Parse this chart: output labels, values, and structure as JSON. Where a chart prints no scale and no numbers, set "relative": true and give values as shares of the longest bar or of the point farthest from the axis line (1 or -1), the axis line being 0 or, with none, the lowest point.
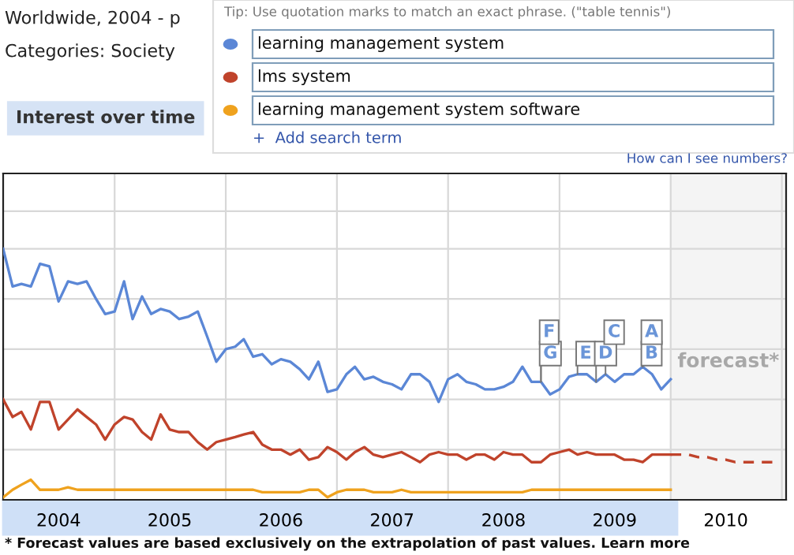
{
  "chart_data": {
    "type": "line",
    "title": "Interest over time",
    "relative": true,
    "legend": "top",
    "grid": true,
    "tick_labels": "x",
    "x": [
      "2004-01",
      "2004-02",
      "2004-03",
      "2004-04",
      "2004-05",
      "2004-06",
      "2004-07",
      "2004-08",
      "2004-09",
      "2004-10",
      "2004-11",
      "2004-12",
      "2005-01",
      "2005-02",
      "2005-03",
      "2005-04",
      "2005-05",
      "2005-06",
      "2005-07",
      "2005-08",
      "2005-09",
      "2005-10",
      "2005-11",
      "2005-12",
      "2006-01",
      "2006-02",
      "2006-03",
      "2006-04",
      "2006-05",
      "2006-06",
      "2006-07",
      "2006-08",
      "2006-09",
      "2006-10",
      "2006-11",
      "2006-12",
      "2007-01",
      "2007-02",
      "2007-03",
      "2007-04",
      "2007-05",
      "2007-06",
      "2007-07",
      "2007-08",
      "2007-09",
      "2007-10",
      "2007-11",
      "2007-12",
      "2008-01",
      "2008-02",
      "2008-03",
      "2008-04",
      "2008-05",
      "2008-06",
      "2008-07",
      "2008-08",
      "2008-09",
      "2008-10",
      "2008-11",
      "2008-12",
      "2009-01",
      "2009-02",
      "2009-03",
      "2009-04",
      "2009-05",
      "2009-06",
      "2009-07",
      "2009-08",
      "2009-09",
      "2009-10",
      "2009-11",
      "2009-12",
      "2010-01"
    ],
    "xlim": [
      "2004-01-01",
      "2011-01-15"
    ],
    "xticks": [
      {
        "value": "2005-01-01",
        "label": null
      },
      {
        "value": "2006-01-01",
        "label": null
      },
      {
        "value": "2007-01-01",
        "label": null
      },
      {
        "value": "2008-01-01",
        "label": null
      },
      {
        "value": "2009-01-01",
        "label": null
      },
      {
        "value": "2010-01-01",
        "label": null
      },
      {
        "value": "2011-01-01",
        "label": null
      },
      {
        "value": "2004-07-01",
        "label": "2004"
      },
      {
        "value": "2005-07-01",
        "label": "2005"
      },
      {
        "value": "2006-07-01",
        "label": "2006"
      },
      {
        "value": "2007-07-01",
        "label": "2007"
      },
      {
        "value": "2008-07-01",
        "label": "2008"
      },
      {
        "value": "2009-07-01",
        "label": "2009"
      },
      {
        "value": "2010-07-01",
        "label": "2010"
      }
    ],
    "series": [
      {
        "name": "learning management system",
        "color": "#5b87d6",
        "values": [
          1.0,
          0.85,
          0.86,
          0.85,
          0.94,
          0.93,
          0.79,
          0.87,
          0.86,
          0.87,
          0.8,
          0.74,
          0.75,
          0.87,
          0.72,
          0.81,
          0.74,
          0.76,
          0.75,
          0.72,
          0.73,
          0.75,
          0.65,
          0.55,
          0.6,
          0.61,
          0.64,
          0.57,
          0.58,
          0.54,
          0.56,
          0.55,
          0.52,
          0.48,
          0.55,
          0.43,
          0.44,
          0.5,
          0.53,
          0.48,
          0.49,
          0.47,
          0.46,
          0.44,
          0.5,
          0.5,
          0.47,
          0.39,
          0.48,
          0.5,
          0.47,
          0.46,
          0.44,
          0.44,
          0.45,
          0.47,
          0.53,
          0.47,
          0.47,
          0.42,
          0.44,
          0.49,
          0.5,
          0.5,
          0.47,
          0.5,
          0.47,
          0.5,
          0.5,
          0.53,
          0.5,
          0.44,
          0.48
        ]
      },
      {
        "name": "lms system",
        "color": "#c0432b",
        "values": [
          0.4,
          0.33,
          0.35,
          0.28,
          0.39,
          0.39,
          0.28,
          0.32,
          0.36,
          0.33,
          0.3,
          0.24,
          0.3,
          0.33,
          0.32,
          0.27,
          0.24,
          0.34,
          0.28,
          0.27,
          0.27,
          0.23,
          0.2,
          0.23,
          0.24,
          0.25,
          0.26,
          0.27,
          0.22,
          0.2,
          0.2,
          0.18,
          0.2,
          0.16,
          0.17,
          0.21,
          0.19,
          0.16,
          0.19,
          0.21,
          0.18,
          0.17,
          0.18,
          0.19,
          0.17,
          0.15,
          0.18,
          0.19,
          0.18,
          0.18,
          0.16,
          0.18,
          0.18,
          0.16,
          0.19,
          0.18,
          0.18,
          0.15,
          0.15,
          0.18,
          0.19,
          0.2,
          0.18,
          0.19,
          0.18,
          0.18,
          0.18,
          0.16,
          0.16,
          0.15,
          0.18,
          0.18,
          0.18
        ]
      },
      {
        "name": "learning management system software",
        "color": "#efa21e",
        "values": [
          0.01,
          0.04,
          0.06,
          0.08,
          0.04,
          0.04,
          0.04,
          0.05,
          0.04,
          0.04,
          0.04,
          0.04,
          0.04,
          0.04,
          0.04,
          0.04,
          0.04,
          0.04,
          0.04,
          0.04,
          0.04,
          0.04,
          0.04,
          0.04,
          0.04,
          0.04,
          0.04,
          0.04,
          0.03,
          0.03,
          0.03,
          0.03,
          0.03,
          0.04,
          0.04,
          0.01,
          0.03,
          0.04,
          0.04,
          0.04,
          0.03,
          0.03,
          0.03,
          0.04,
          0.03,
          0.03,
          0.03,
          0.03,
          0.03,
          0.03,
          0.03,
          0.03,
          0.03,
          0.03,
          0.03,
          0.03,
          0.03,
          0.04,
          0.04,
          0.04,
          0.04,
          0.04,
          0.04,
          0.04,
          0.04,
          0.04,
          0.04,
          0.04,
          0.04,
          0.04,
          0.04,
          0.04,
          0.04
        ]
      },
      {
        "color": "#c0432b",
        "line_style": "dashed",
        "x": [
          "2010-01",
          "2010-02",
          "2010-03",
          "2010-04",
          "2010-05",
          "2010-06",
          "2010-07",
          "2010-08",
          "2010-09",
          "2010-10",
          "2010-11",
          "2010-12"
        ],
        "values": [
          0.18,
          0.18,
          0.18,
          0.17,
          0.17,
          0.16,
          0.16,
          0.15,
          0.15,
          0.15,
          0.15,
          0.15
        ]
      }
    ],
    "bands": [
      {
        "axis": "x",
        "from": "2010-01-01",
        "to": "2011-01-15",
        "label": "forecast*",
        "color": "#f4f4f4"
      }
    ],
    "annotations": [
      "Worldwide, 2004 - p",
      "Categories: Society",
      "Tip: Use quotation marks to match an exact phrase. (\"table tennis\")",
      "+  Add search term",
      "How can I see numbers?",
      "* Forecast values are based exclusively on the extrapolation of past values. Learn more",
      {
        "text": "A",
        "x": "2009-10",
        "y": 0.53
      },
      {
        "text": "B",
        "x": "2009-10",
        "y": 0.53
      },
      {
        "text": "C",
        "x": "2009-06",
        "y": 0.5
      },
      {
        "text": "D",
        "x": "2009-05",
        "y": 0.47
      },
      {
        "text": "E",
        "x": "2009-03",
        "y": 0.5
      },
      {
        "text": "F",
        "x": "2008-11",
        "y": 0.47
      },
      {
        "text": "G",
        "x": "2008-11",
        "y": 0.47
      }
    ]
  }
}
